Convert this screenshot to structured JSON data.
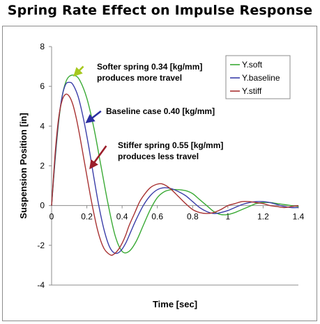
{
  "chart_data": {
    "type": "line",
    "title": "Spring Rate Effect on Impulse Response",
    "xlabel": "Time [sec]",
    "ylabel": "Suspension Position [in]",
    "xlim": [
      0,
      1.4
    ],
    "ylim": [
      -4,
      8
    ],
    "xticks": [
      0,
      0.2,
      0.4,
      0.6,
      0.8,
      1,
      1.2,
      1.4
    ],
    "xtick_labels": [
      "0",
      "0.2",
      "0.4",
      "0.6",
      "0.8",
      "1",
      "1.2",
      "1.4"
    ],
    "yticks": [
      -4,
      -2,
      0,
      2,
      4,
      6,
      8
    ],
    "ytick_labels": [
      "-4",
      "-2",
      "0",
      "2",
      "4",
      "6",
      "8"
    ],
    "grid": false,
    "legend": "top-right",
    "series": [
      {
        "name": "Y.soft",
        "color": "#3aaa35",
        "x": [
          0,
          0.02,
          0.04,
          0.06,
          0.08,
          0.1,
          0.13,
          0.16,
          0.2,
          0.24,
          0.28,
          0.32,
          0.36,
          0.4,
          0.44,
          0.48,
          0.52,
          0.56,
          0.6,
          0.64,
          0.68,
          0.72,
          0.76,
          0.8,
          0.84,
          0.88,
          0.92,
          0.96,
          1.0,
          1.04,
          1.08,
          1.12,
          1.16,
          1.2,
          1.24,
          1.28,
          1.32,
          1.36,
          1.4
        ],
        "y": [
          0,
          2.3,
          4.2,
          5.5,
          6.2,
          6.5,
          6.55,
          6.3,
          5.4,
          3.9,
          2.0,
          0.1,
          -1.5,
          -2.3,
          -2.3,
          -1.8,
          -1.0,
          -0.2,
          0.4,
          0.7,
          0.8,
          0.8,
          0.75,
          0.6,
          0.3,
          0.0,
          -0.3,
          -0.45,
          -0.45,
          -0.35,
          -0.2,
          -0.05,
          0.1,
          0.15,
          0.15,
          0.1,
          0.05,
          0.0,
          -0.05
        ]
      },
      {
        "name": "Y.baseline",
        "color": "#3a3da8",
        "x": [
          0,
          0.02,
          0.04,
          0.06,
          0.08,
          0.1,
          0.12,
          0.15,
          0.18,
          0.21,
          0.24,
          0.27,
          0.3,
          0.33,
          0.36,
          0.39,
          0.42,
          0.45,
          0.48,
          0.52,
          0.56,
          0.6,
          0.64,
          0.68,
          0.72,
          0.76,
          0.8,
          0.84,
          0.88,
          0.92,
          0.96,
          1.0,
          1.04,
          1.08,
          1.12,
          1.16,
          1.2,
          1.24,
          1.28,
          1.32,
          1.36,
          1.4
        ],
        "y": [
          0,
          2.4,
          4.3,
          5.5,
          6.1,
          6.2,
          6.1,
          5.5,
          4.4,
          3.0,
          1.4,
          -0.1,
          -1.3,
          -2.1,
          -2.4,
          -2.3,
          -1.9,
          -1.3,
          -0.7,
          0.0,
          0.5,
          0.8,
          0.9,
          0.85,
          0.7,
          0.5,
          0.2,
          -0.1,
          -0.3,
          -0.4,
          -0.35,
          -0.25,
          -0.1,
          0.05,
          0.15,
          0.2,
          0.2,
          0.15,
          0.05,
          -0.05,
          -0.1,
          -0.1
        ]
      },
      {
        "name": "Y.stiff",
        "color": "#a83232",
        "x": [
          0,
          0.02,
          0.04,
          0.06,
          0.08,
          0.1,
          0.12,
          0.14,
          0.16,
          0.18,
          0.2,
          0.22,
          0.24,
          0.26,
          0.28,
          0.3,
          0.32,
          0.34,
          0.36,
          0.38,
          0.4,
          0.42,
          0.44,
          0.47,
          0.5,
          0.53,
          0.56,
          0.59,
          0.62,
          0.65,
          0.68,
          0.72,
          0.76,
          0.8,
          0.84,
          0.88,
          0.92,
          0.96,
          1.0,
          1.04,
          1.08,
          1.12,
          1.16,
          1.2,
          1.24,
          1.28,
          1.32,
          1.36,
          1.4
        ],
        "y": [
          0,
          2.6,
          4.4,
          5.3,
          5.6,
          5.5,
          5.1,
          4.4,
          3.5,
          2.5,
          1.5,
          0.5,
          -0.4,
          -1.2,
          -1.8,
          -2.2,
          -2.4,
          -2.5,
          -2.4,
          -2.2,
          -1.9,
          -1.5,
          -1.0,
          -0.4,
          0.2,
          0.6,
          0.9,
          1.05,
          1.1,
          1.0,
          0.8,
          0.45,
          0.1,
          -0.2,
          -0.35,
          -0.4,
          -0.35,
          -0.2,
          0.0,
          0.1,
          0.2,
          0.2,
          0.15,
          0.1,
          0.0,
          -0.05,
          -0.1,
          -0.05,
          0.0
        ]
      }
    ],
    "annotations": [
      {
        "lines": [
          "Softer spring 0.34 [kg/mm]",
          "produces more travel"
        ],
        "color": "#a6c81e",
        "arrow_to": [
          0.13,
          6.55
        ],
        "arrow_from": [
          0.18,
          7.0
        ]
      },
      {
        "lines": [
          "Baseline case 0.40 [kg/mm]"
        ],
        "color": "#2b2fa0",
        "arrow_to": [
          0.2,
          4.2
        ],
        "arrow_from": [
          0.28,
          4.75
        ]
      },
      {
        "lines": [
          "Stiffer spring 0.55 [kg/mm]",
          "produces less travel"
        ],
        "color": "#9b1e2a",
        "arrow_to": [
          0.22,
          1.9
        ],
        "arrow_from": [
          0.31,
          3.0
        ]
      }
    ]
  }
}
